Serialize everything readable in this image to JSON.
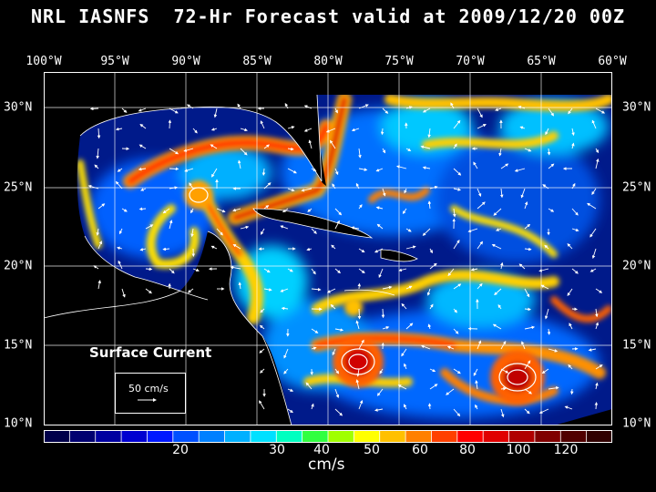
{
  "title": "NRL IASNFS  72-Hr Forecast valid at 2009/12/20 00Z",
  "longitude_labels": [
    "100°W",
    "95°W",
    "90°W",
    "85°W",
    "80°W",
    "75°W",
    "70°W",
    "65°W",
    "60°W"
  ],
  "latitude_labels": [
    "30°N",
    "25°N",
    "20°N",
    "15°N",
    "10°N"
  ],
  "map": {
    "lon_range": [
      -100,
      -60
    ],
    "lat_range": [
      10,
      32
    ],
    "grid": true,
    "field": "surface current speed",
    "legend_title": "Surface Current",
    "reference_vector_label": "50 cm/s"
  },
  "colorbar": {
    "units": "cm/s",
    "tick_labels": [
      "20",
      "30",
      "40",
      "50",
      "60",
      "80",
      "100",
      "120"
    ],
    "colors": [
      "#00004a",
      "#000070",
      "#0000a0",
      "#0000d0",
      "#0018ff",
      "#0050ff",
      "#0080ff",
      "#00b0ff",
      "#00e0ff",
      "#00ffc0",
      "#30ff40",
      "#a0ff00",
      "#ffff00",
      "#ffc000",
      "#ff8000",
      "#ff4000",
      "#ff0000",
      "#e00000",
      "#b00000",
      "#800000",
      "#500000",
      "#300000"
    ]
  }
}
